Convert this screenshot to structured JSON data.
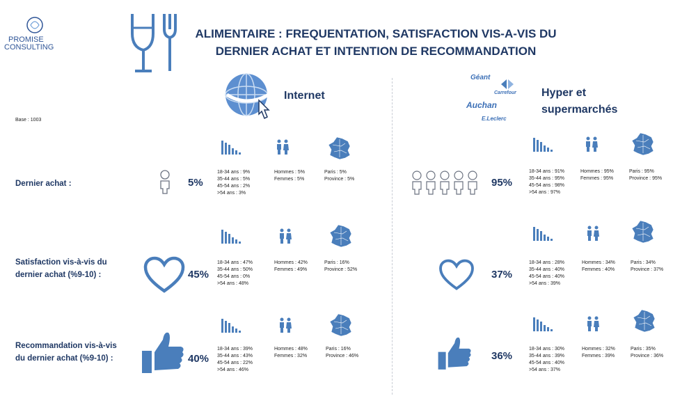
{
  "brand": {
    "name_line1": "PROMISE",
    "name_line2": "CONSULTING"
  },
  "title_line1": "ALIMENTAIRE : FREQUENTATION, SATISFACTION VIS-A-VIS DU",
  "title_line2": "DERNIER ACHAT ET INTENTION DE RECOMMANDATION",
  "base": "Base : 1003",
  "colors": {
    "primary": "#1f3864",
    "icon": "#4a7ebb",
    "icon_light": "#6f9fd8"
  },
  "row_labels": {
    "dernier": "Dernier achat :",
    "satisfaction_l1": "Satisfaction vis-à-vis du",
    "satisfaction_l2": "dernier achat (%9-10) :",
    "recommandation_l1": "Recommandation vis-à-vis",
    "recommandation_l2": "du dernier achat (%9-10) :"
  },
  "internet": {
    "title": "Internet",
    "rows": {
      "dernier": {
        "pct": "5%",
        "age": [
          "18-34 ans : 9%",
          "35-44 ans : 5%",
          "45-54 ans : 2%",
          ">54 ans : 3%"
        ],
        "sexe": [
          "Hommes : 5%",
          "Femmes : 5%"
        ],
        "region": [
          "Paris : 5%",
          "Province : 5%"
        ]
      },
      "satisfaction": {
        "pct": "45%",
        "age": [
          "18-34 ans : 47%",
          "35-44 ans : 50%",
          "45-54 ans : 0%",
          ">54 ans : 48%"
        ],
        "sexe": [
          "Hommes : 42%",
          "Femmes : 49%"
        ],
        "region": [
          "Paris : 16%",
          "Province : 52%"
        ]
      },
      "recommandation": {
        "pct": "40%",
        "age": [
          "18-34 ans : 39%",
          "35-44 ans : 43%",
          "45-54 ans : 22%",
          ">54 ans : 46%"
        ],
        "sexe": [
          "Hommes : 48%",
          "Femmes : 32%"
        ],
        "region": [
          "Paris : 16%",
          "Province : 46%"
        ]
      }
    }
  },
  "hyper": {
    "title_l1": "Hyper et",
    "title_l2": "supermarchés",
    "logos": [
      "Géant",
      "Carrefour",
      "Auchan",
      "E.Leclerc"
    ],
    "rows": {
      "dernier": {
        "pct": "95%",
        "age": [
          "18-34 ans : 91%",
          "35-44 ans : 95%",
          "45-54 ans : 98%",
          ">54 ans : 97%"
        ],
        "sexe": [
          "Hommes : 95%",
          "Femmes : 95%"
        ],
        "region": [
          "Paris : 95%",
          "Province : 95%"
        ]
      },
      "satisfaction": {
        "pct": "37%",
        "age": [
          "18-34 ans : 28%",
          "35-44 ans : 40%",
          "45-54 ans : 40%",
          ">54 ans : 39%"
        ],
        "sexe": [
          "Hommes : 34%",
          "Femmes : 40%"
        ],
        "region": [
          "Paris : 34%",
          "Province : 37%"
        ]
      },
      "recommandation": {
        "pct": "36%",
        "age": [
          "18-34 ans : 30%",
          "35-44 ans : 39%",
          "45-54 ans : 40%",
          ">54 ans : 37%"
        ],
        "sexe": [
          "Hommes : 32%",
          "Femmes : 39%"
        ],
        "region": [
          "Paris : 35%",
          "Province : 36%"
        ]
      }
    }
  }
}
